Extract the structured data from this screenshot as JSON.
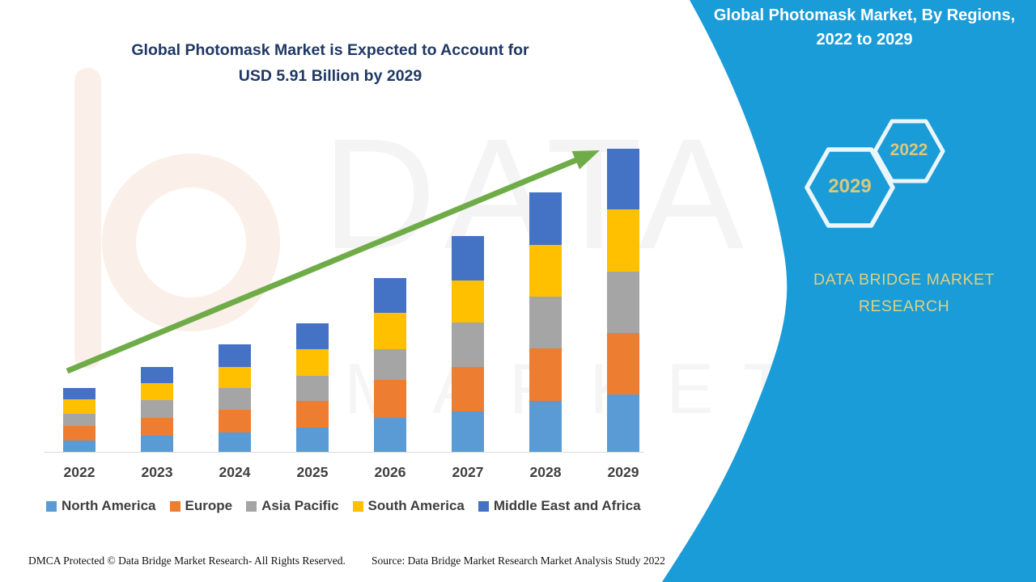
{
  "title": {
    "line1": "Global Photomask Market is Expected to Account for",
    "line2": "USD 5.91 Billion by 2029"
  },
  "right_panel": {
    "header_line1": "Global Photomask Market, By Regions,",
    "header_line2": "2022 to 2029",
    "hexagons": [
      {
        "label": "2029"
      },
      {
        "label": "2022"
      }
    ],
    "brand_line1": "DATA BRIDGE MARKET",
    "brand_line2": "RESEARCH",
    "panel_color": "#1a9cd8",
    "accent_text_color": "#d9c87d"
  },
  "watermark": {
    "line1": "DATA BRIDGE",
    "line2": "MARKET RESEARCH"
  },
  "footer": {
    "left": "DMCA Protected © Data Bridge Market Research- All Rights Reserved.",
    "right": "Source: Data Bridge Market Research Market Analysis Study 2022"
  },
  "chart_data": {
    "type": "bar",
    "stacked": true,
    "unit": "USD Billion",
    "title": "Global Photomask Market is Expected to Account for USD 5.91 Billion by 2029",
    "categories": [
      "2022",
      "2023",
      "2024",
      "2025",
      "2026",
      "2027",
      "2028",
      "2029"
    ],
    "series": [
      {
        "name": "North America",
        "color": "#5B9BD5",
        "values": [
          0.22,
          0.32,
          0.38,
          0.47,
          0.66,
          0.79,
          0.99,
          1.12
        ]
      },
      {
        "name": "Europe",
        "color": "#ED7D31",
        "values": [
          0.28,
          0.35,
          0.44,
          0.52,
          0.74,
          0.87,
          1.02,
          1.2
        ]
      },
      {
        "name": "Asia Pacific",
        "color": "#A5A5A5",
        "values": [
          0.24,
          0.35,
          0.43,
          0.49,
          0.6,
          0.87,
          1.01,
          1.2
        ]
      },
      {
        "name": "South America",
        "color": "#FFC000",
        "values": [
          0.28,
          0.33,
          0.41,
          0.52,
          0.71,
          0.82,
          1.01,
          1.21
        ]
      },
      {
        "name": "Middle East and Africa",
        "color": "#4472C4",
        "values": [
          0.22,
          0.32,
          0.44,
          0.5,
          0.68,
          0.87,
          1.02,
          1.18
        ]
      }
    ],
    "totals": [
      1.24,
      1.67,
      2.1,
      2.5,
      3.39,
      4.22,
      5.05,
      5.91
    ],
    "annotation": {
      "trend_arrow": true,
      "arrow_color": "#6FAC47"
    },
    "legend_position": "bottom",
    "gridlines": false,
    "ylim": [
      0,
      6
    ]
  }
}
